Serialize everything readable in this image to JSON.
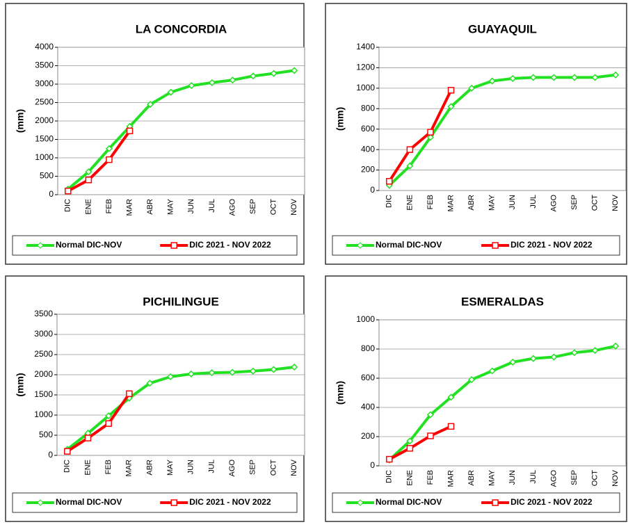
{
  "chart_data": [
    {
      "type": "line",
      "title": "LA CONCORDIA",
      "y_label": "(mm)",
      "categories": [
        "DIC",
        "ENE",
        "FEB",
        "MAR",
        "ABR",
        "MAY",
        "JUN",
        "JUL",
        "AGO",
        "SEP",
        "OCT",
        "NOV"
      ],
      "series": [
        {
          "name": "Normal DIC-NOV",
          "color": "#22e022",
          "values": [
            150,
            620,
            1250,
            1850,
            2450,
            2780,
            2960,
            3040,
            3110,
            3220,
            3290,
            3370
          ]
        },
        {
          "name": "DIC 2021 - NOV 2022",
          "color": "#ff0000",
          "values": [
            100,
            400,
            950,
            1730,
            null,
            null,
            null,
            null,
            null,
            null,
            null,
            null
          ]
        }
      ],
      "ylim": [
        0,
        4000
      ],
      "yticks": [
        0,
        500,
        1000,
        1500,
        2000,
        2500,
        3000,
        3500,
        4000
      ],
      "grid": true
    },
    {
      "type": "line",
      "title": "GUAYAQUIL",
      "y_label": "(mm)",
      "categories": [
        "DIC",
        "ENE",
        "FEB",
        "MAR",
        "ABR",
        "MAY",
        "JUN",
        "JUL",
        "AGO",
        "SEP",
        "OCT",
        "NOV"
      ],
      "series": [
        {
          "name": "Normal DIC-NOV",
          "color": "#22e022",
          "values": [
            50,
            240,
            520,
            820,
            1000,
            1070,
            1095,
            1105,
            1105,
            1105,
            1105,
            1130
          ]
        },
        {
          "name": "DIC 2021 - NOV 2022",
          "color": "#ff0000",
          "values": [
            90,
            400,
            570,
            980,
            null,
            null,
            null,
            null,
            null,
            null,
            null,
            null
          ]
        }
      ],
      "ylim": [
        0,
        1400
      ],
      "yticks": [
        0,
        200,
        400,
        600,
        800,
        1000,
        1200,
        1400
      ],
      "grid": true
    },
    {
      "type": "line",
      "title": "PICHILINGUE",
      "y_label": "(mm)",
      "categories": [
        "DIC",
        "ENE",
        "FEB",
        "MAR",
        "ABR",
        "MAY",
        "JUN",
        "JUL",
        "AGO",
        "SEP",
        "OCT",
        "NOV"
      ],
      "series": [
        {
          "name": "Normal DIC-NOV",
          "color": "#22e022",
          "values": [
            150,
            550,
            980,
            1420,
            1790,
            1950,
            2020,
            2050,
            2060,
            2090,
            2130,
            2190
          ]
        },
        {
          "name": "DIC 2021 - NOV 2022",
          "color": "#ff0000",
          "values": [
            100,
            430,
            790,
            1530,
            null,
            null,
            null,
            null,
            null,
            null,
            null,
            null
          ]
        }
      ],
      "ylim": [
        0,
        3500
      ],
      "yticks": [
        0,
        500,
        1000,
        1500,
        2000,
        2500,
        3000,
        3500
      ],
      "grid": true
    },
    {
      "type": "line",
      "title": "ESMERALDAS",
      "y_label": "(mm)",
      "categories": [
        "DIC",
        "ENE",
        "FEB",
        "MAR",
        "ABR",
        "MAY",
        "JUN",
        "JUL",
        "AGO",
        "SEP",
        "OCT",
        "NOV"
      ],
      "series": [
        {
          "name": "Normal DIC-NOV",
          "color": "#22e022",
          "values": [
            40,
            170,
            350,
            470,
            590,
            650,
            710,
            735,
            745,
            775,
            790,
            820
          ]
        },
        {
          "name": "DIC 2021 - NOV 2022",
          "color": "#ff0000",
          "values": [
            45,
            120,
            205,
            270,
            null,
            null,
            null,
            null,
            null,
            null,
            null,
            null
          ]
        }
      ],
      "ylim": [
        0,
        1000
      ],
      "yticks": [
        0,
        200,
        400,
        600,
        800,
        1000
      ],
      "grid": true
    }
  ]
}
